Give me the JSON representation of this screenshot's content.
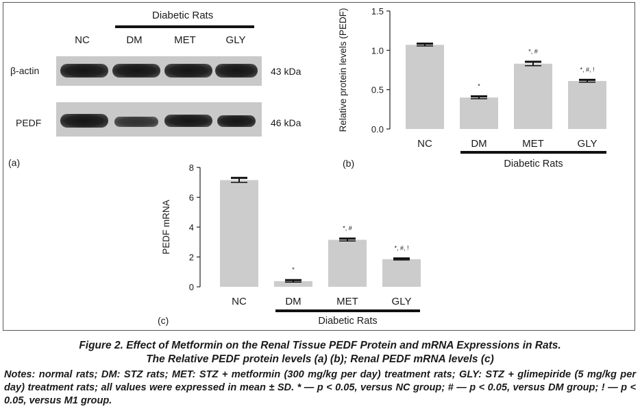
{
  "panel_a": {
    "group_label": "Diabetic Rats",
    "lanes": [
      "NC",
      "DM",
      "MET",
      "GLY"
    ],
    "rows": [
      {
        "name": "β-actin",
        "kda": "43 kDa"
      },
      {
        "name": "PEDF",
        "kda": "46 kDa"
      }
    ],
    "tag": "(a)"
  },
  "chart_data": [
    {
      "type": "bar",
      "panel": "(b)",
      "categories": [
        "NC",
        "DM",
        "MET",
        "GLY"
      ],
      "values": [
        1.07,
        0.4,
        0.83,
        0.61
      ],
      "errors": [
        0.015,
        0.015,
        0.025,
        0.015
      ],
      "annotations": [
        "",
        "*",
        "*, #",
        "*, #, !"
      ],
      "ylabel": "Relative protein levels (PEDF)",
      "ylim": [
        0,
        1.5
      ],
      "yticks": [
        "0.0",
        "0.5",
        "1.0",
        "1.5"
      ],
      "group_label": "Diabetic Rats",
      "bar_color": "#cccccc"
    },
    {
      "type": "bar",
      "panel": "(c)",
      "categories": [
        "NC",
        "DM",
        "MET",
        "GLY"
      ],
      "values": [
        7.15,
        0.38,
        3.15,
        1.85
      ],
      "errors": [
        0.15,
        0.07,
        0.08,
        0.05
      ],
      "annotations": [
        "",
        "*",
        "*, #",
        "*, #, !"
      ],
      "ylabel": "PEDF mRNA",
      "ylim": [
        0,
        8
      ],
      "yticks": [
        "0",
        "2",
        "4",
        "6",
        "8"
      ],
      "group_label": "Diabetic Rats",
      "bar_color": "#cccccc"
    }
  ],
  "caption": {
    "line1": "Figure 2.  Effect of Metformin on the Renal Tissue PEDF Protein and mRNA Expressions in Rats.",
    "line2": "The Relative PEDF protein levels (a) (b); Renal PEDF mRNA levels (c)"
  },
  "notes": "Notes: normal rats; DM: STZ rats; MET: STZ + metformin (300 mg/kg per day) treatment rats; GLY: STZ + glimepiride (5 mg/kg per day) treatment rats; all values were expressed in mean ± SD. * — p < 0.05, versus NC group; # — p < 0.05, versus DM group; ! — p < 0.05, versus M1 group."
}
